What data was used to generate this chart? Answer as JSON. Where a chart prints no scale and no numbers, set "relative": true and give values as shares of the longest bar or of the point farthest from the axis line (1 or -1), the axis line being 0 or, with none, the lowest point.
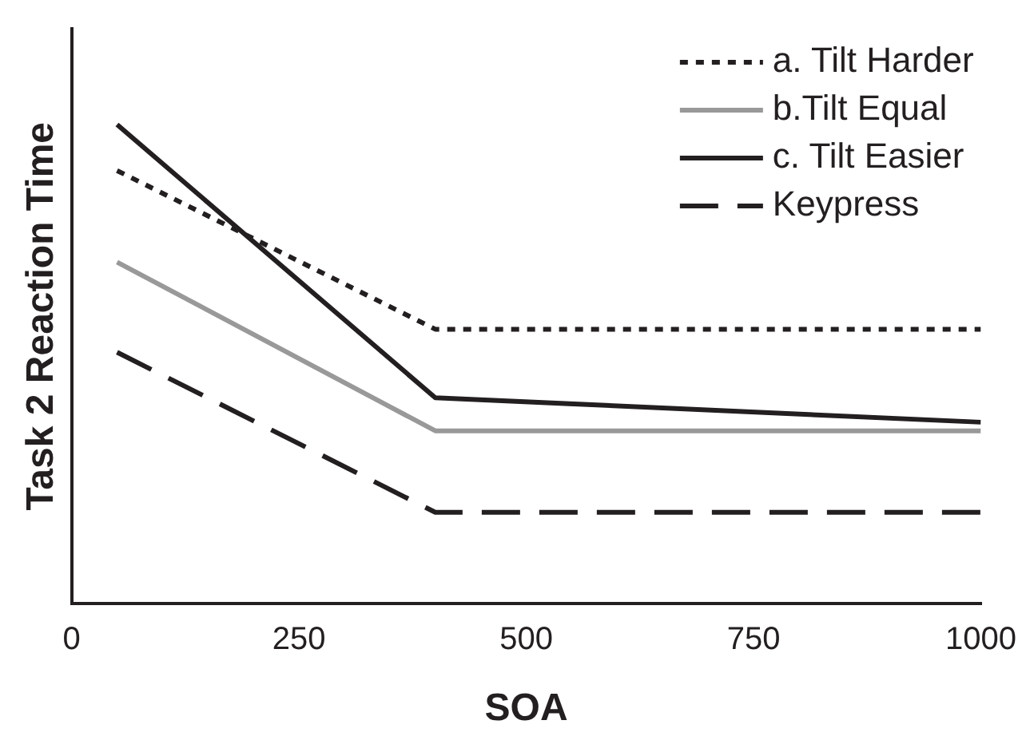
{
  "chart_data": {
    "type": "line",
    "xlabel": "SOA",
    "ylabel": "Task 2 Reaction Time",
    "relative": true,
    "x": [
      50,
      400,
      1000
    ],
    "xlim": [
      0,
      1000
    ],
    "xticks": [
      0,
      250,
      500,
      750,
      1000
    ],
    "legend": "top right",
    "grid": false,
    "marker": "none",
    "series": [
      {
        "name": "a. Tilt Harder",
        "color": "#231f20",
        "line_style": "dotted",
        "values": [
          0.904,
          0.573,
          0.573
        ]
      },
      {
        "name": "b.Tilt Equal",
        "color": "#999999",
        "line_style": "solid",
        "values": [
          0.713,
          0.361,
          0.361
        ]
      },
      {
        "name": "c. Tilt Easier",
        "color": "#231f20",
        "line_style": "solid",
        "values": [
          1,
          0.43,
          0.379
        ]
      },
      {
        "name": "Keypress",
        "color": "#231f20",
        "line_style": "dashed",
        "values": [
          0.525,
          0.191,
          0.191
        ]
      }
    ]
  }
}
